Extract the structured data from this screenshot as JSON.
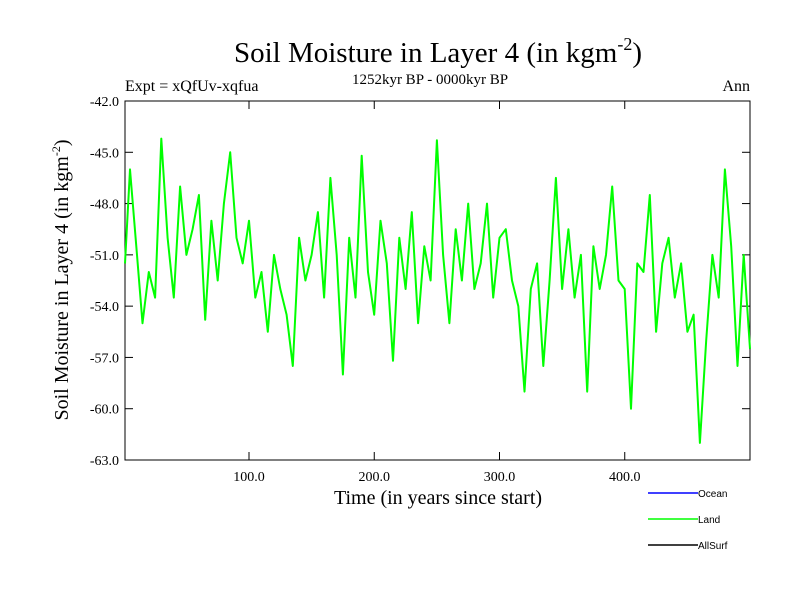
{
  "chart_data": {
    "type": "line",
    "title": "Soil Moisture in Layer 4 (in kgm",
    "title_sup": "-2",
    "title_close": ")",
    "subtitle_left": "Expt = xQfUv-xqfua",
    "subtitle_center": "1252kyr BP - 0000kyr BP",
    "subtitle_right": "Ann",
    "xlabel": "Time (in years since start)",
    "ylabel": "Soil Moisture in Layer 4 (in kgm",
    "ylabel_sup": "-2",
    "ylabel_close": ")",
    "xlim": [
      1,
      500
    ],
    "ylim": [
      -63,
      -42
    ],
    "xticks": [
      100,
      200,
      300,
      400
    ],
    "xtick_labels": [
      "100.0",
      "200.0",
      "300.0",
      "400.0"
    ],
    "yticks": [
      -42,
      -45,
      -48,
      -51,
      -54,
      -57,
      -60,
      -63
    ],
    "ytick_labels": [
      "-42.0",
      "-45.0",
      "-48.0",
      "-51.0",
      "-54.0",
      "-57.0",
      "-60.0",
      "-63.0"
    ],
    "legend": [
      {
        "name": "Ocean",
        "color": "#0000ff"
      },
      {
        "name": "Land",
        "color": "#00ff00"
      },
      {
        "name": "AllSurf",
        "color": "#000000"
      }
    ],
    "series": [
      {
        "name": "Land",
        "color": "#00ff00",
        "x": [
          1,
          5,
          10,
          15,
          20,
          25,
          30,
          35,
          40,
          45,
          50,
          55,
          60,
          65,
          70,
          75,
          80,
          85,
          90,
          95,
          100,
          105,
          110,
          115,
          120,
          125,
          130,
          135,
          140,
          145,
          150,
          155,
          160,
          165,
          170,
          175,
          180,
          185,
          190,
          195,
          200,
          205,
          210,
          215,
          220,
          225,
          230,
          235,
          240,
          245,
          250,
          255,
          260,
          265,
          270,
          275,
          280,
          285,
          290,
          295,
          300,
          305,
          310,
          315,
          320,
          325,
          330,
          335,
          340,
          345,
          350,
          355,
          360,
          365,
          370,
          375,
          380,
          385,
          390,
          395,
          400,
          405,
          410,
          415,
          420,
          425,
          430,
          435,
          440,
          445,
          450,
          455,
          460,
          465,
          470,
          475,
          480,
          485,
          490,
          495,
          500
        ],
        "values": [
          -51.5,
          -46.0,
          -50.5,
          -55.0,
          -52.0,
          -53.5,
          -44.2,
          -50.0,
          -53.5,
          -47.0,
          -51.0,
          -49.5,
          -47.5,
          -54.8,
          -49.0,
          -52.5,
          -48.0,
          -45.0,
          -50.0,
          -51.5,
          -49.0,
          -53.5,
          -52.0,
          -55.5,
          -51.0,
          -53.0,
          -54.5,
          -57.5,
          -50.0,
          -52.5,
          -51.0,
          -48.5,
          -53.5,
          -46.5,
          -51.0,
          -58.0,
          -50.0,
          -53.5,
          -45.2,
          -52.0,
          -54.5,
          -49.0,
          -51.5,
          -57.2,
          -50.0,
          -53.0,
          -48.5,
          -55.0,
          -50.5,
          -52.5,
          -44.3,
          -51.0,
          -55.0,
          -49.5,
          -52.5,
          -48.0,
          -53.0,
          -51.5,
          -48.0,
          -53.5,
          -50.0,
          -49.5,
          -52.5,
          -54.0,
          -59.0,
          -53.0,
          -51.5,
          -57.5,
          -52.5,
          -46.5,
          -53.0,
          -49.5,
          -53.5,
          -51.0,
          -59.0,
          -50.5,
          -53.0,
          -51.0,
          -47.0,
          -52.5,
          -53.0,
          -60.0,
          -51.5,
          -52.0,
          -47.5,
          -55.5,
          -51.5,
          -50.0,
          -53.5,
          -51.5,
          -55.5,
          -54.5,
          -62.0,
          -56.0,
          -51.0,
          -53.5,
          -46.0,
          -50.5,
          -57.5,
          -51.0,
          -56.5
        ]
      }
    ]
  }
}
